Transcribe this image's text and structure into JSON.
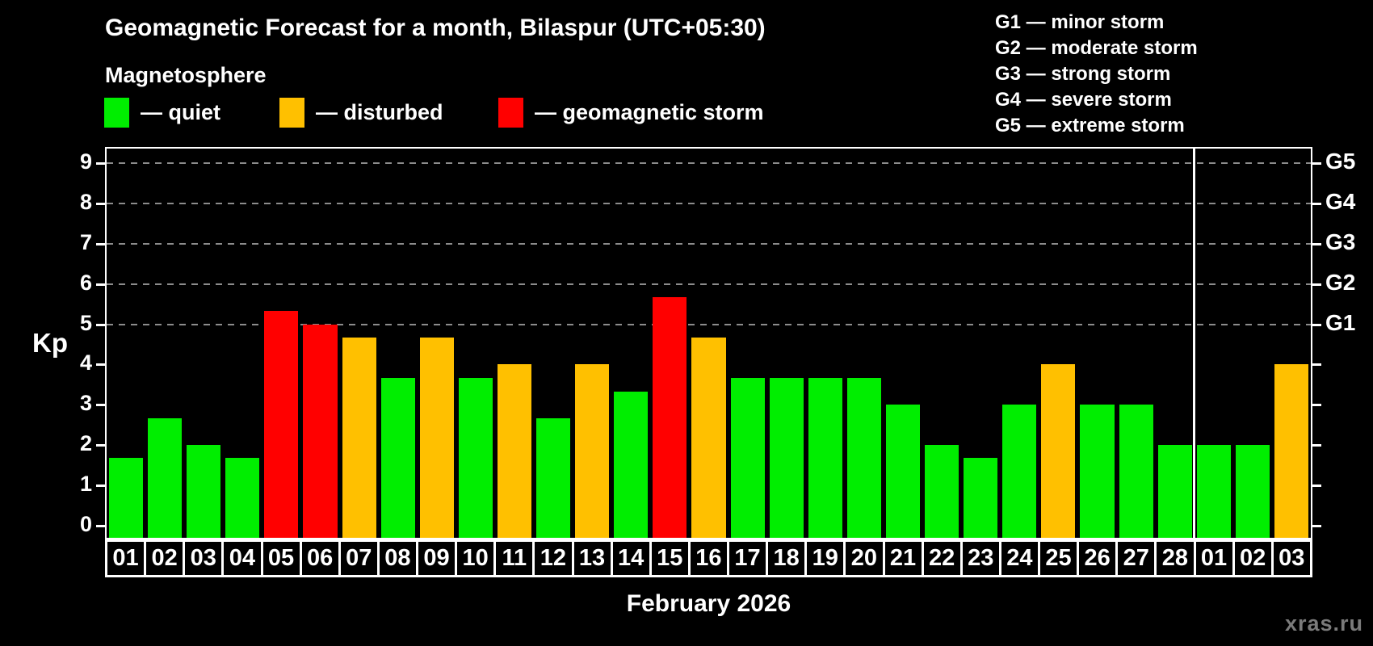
{
  "title": "Geomagnetic Forecast for a month, Bilaspur (UTC+05:30)",
  "subtitle": "Magnetosphere",
  "legend": {
    "items": [
      {
        "key": "quiet",
        "label": "— quiet",
        "color": "#00ee00"
      },
      {
        "key": "disturbed",
        "label": "— disturbed",
        "color": "#ffc000"
      },
      {
        "key": "storm",
        "label": "— geomagnetic storm",
        "color": "#ff0000"
      }
    ]
  },
  "storm_scale": {
    "items": [
      {
        "label": "G1 — minor storm"
      },
      {
        "label": "G2 — moderate storm"
      },
      {
        "label": "G3 — strong storm"
      },
      {
        "label": "G4 — severe storm"
      },
      {
        "label": "G5 — extreme storm"
      }
    ]
  },
  "chart_data": {
    "type": "bar",
    "title": "Geomagnetic Forecast for a month, Bilaspur (UTC+05:30)",
    "ylabel": "Kp",
    "xlabel": "February 2026",
    "ylim": [
      0,
      9
    ],
    "yticks": [
      0,
      1,
      2,
      3,
      4,
      5,
      6,
      7,
      8,
      9
    ],
    "gridlines_at_kp": [
      5,
      6,
      7,
      8,
      9
    ],
    "grid": "dashed",
    "legend_position": "top-left",
    "right_axis_labels": [
      {
        "kp": 5,
        "text": "G1"
      },
      {
        "kp": 6,
        "text": "G2"
      },
      {
        "kp": 7,
        "text": "G3"
      },
      {
        "kp": 8,
        "text": "G4"
      },
      {
        "kp": 9,
        "text": "G5"
      }
    ],
    "categories": [
      "01",
      "02",
      "03",
      "04",
      "05",
      "06",
      "07",
      "08",
      "09",
      "10",
      "11",
      "12",
      "13",
      "14",
      "15",
      "16",
      "17",
      "18",
      "19",
      "20",
      "21",
      "22",
      "23",
      "24",
      "25",
      "26",
      "27",
      "28",
      "01",
      "02",
      "03"
    ],
    "month_separator_after_index": 27,
    "series": [
      {
        "name": "Kp forecast",
        "values": [
          1.67,
          2.67,
          2.0,
          1.67,
          5.33,
          5.0,
          4.67,
          3.67,
          4.67,
          3.67,
          4.0,
          2.67,
          4.0,
          3.33,
          5.67,
          4.67,
          3.67,
          3.67,
          3.67,
          3.67,
          3.0,
          2.0,
          1.67,
          3.0,
          4.0,
          3.0,
          3.0,
          2.0,
          2.0,
          2.0,
          4.0
        ],
        "statuses": [
          "quiet",
          "quiet",
          "quiet",
          "quiet",
          "storm",
          "storm",
          "disturbed",
          "quiet",
          "disturbed",
          "quiet",
          "disturbed",
          "quiet",
          "disturbed",
          "quiet",
          "storm",
          "disturbed",
          "quiet",
          "quiet",
          "quiet",
          "quiet",
          "quiet",
          "quiet",
          "quiet",
          "quiet",
          "disturbed",
          "quiet",
          "quiet",
          "quiet",
          "quiet",
          "quiet",
          "disturbed"
        ]
      }
    ],
    "status_colors": {
      "quiet": "#00ee00",
      "disturbed": "#ffc000",
      "storm": "#ff0000"
    }
  },
  "month_label": "February 2026",
  "watermark": "xras.ru"
}
